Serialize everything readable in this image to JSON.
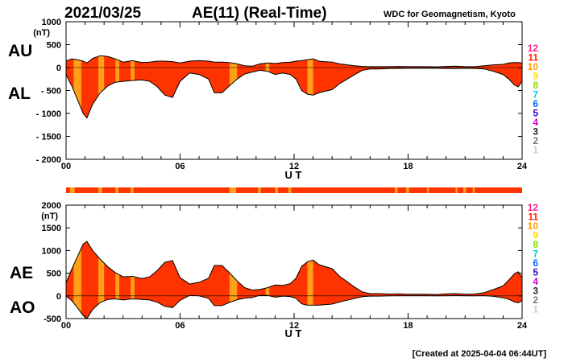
{
  "header": {
    "date": "2021/03/25",
    "title": "AE(11) (Real-Time)",
    "source": "WDC for Geomagnetism, Kyoto"
  },
  "footer": {
    "created": "[Created at 2025-04-04 06:44UT]"
  },
  "colors": {
    "fill_main": "#ff3300",
    "fill_alt": "#ffa018",
    "outline": "#000000"
  },
  "legend": [
    {
      "label": "12",
      "color": "#ff2288"
    },
    {
      "label": "11",
      "color": "#ff2200"
    },
    {
      "label": "10",
      "color": "#ff9900"
    },
    {
      "label": "9",
      "color": "#ffdd00"
    },
    {
      "label": "8",
      "color": "#88dd00"
    },
    {
      "label": "7",
      "color": "#00ccdd"
    },
    {
      "label": "6",
      "color": "#0066ff"
    },
    {
      "label": "5",
      "color": "#3300cc"
    },
    {
      "label": "4",
      "color": "#cc00cc"
    },
    {
      "label": "3",
      "color": "#222222"
    },
    {
      "label": "2",
      "color": "#777777"
    },
    {
      "label": "1",
      "color": "#cccccc"
    }
  ],
  "chart_data": [
    {
      "type": "area",
      "panel": "AU-AL",
      "labels": {
        "upper": "AU",
        "lower": "AL"
      },
      "ylabel": "(nT)",
      "xlabel": "U T",
      "ylim": [
        -2000,
        1000
      ],
      "yticks": [
        1000,
        500,
        0,
        -500,
        -1000,
        -1500,
        -2000
      ],
      "ytick_labels": [
        "1000",
        "500",
        "0",
        "- 500",
        "- 1000",
        "- 1500",
        "- 2000"
      ],
      "xlim": [
        0,
        24
      ],
      "xticks": [
        0,
        6,
        12,
        18,
        24
      ],
      "xtick_labels": [
        "00",
        "06",
        "12",
        "18",
        "24"
      ],
      "x_hours": [
        0,
        0.3,
        0.6,
        0.9,
        1.1,
        1.4,
        1.8,
        2.2,
        2.6,
        3.0,
        3.5,
        4.0,
        4.4,
        4.8,
        5.2,
        5.6,
        6.0,
        6.5,
        7.0,
        7.5,
        7.8,
        8.2,
        8.6,
        9.0,
        9.4,
        9.8,
        10.2,
        10.6,
        11.0,
        11.4,
        11.8,
        12.1,
        12.4,
        12.7,
        13.0,
        13.3,
        13.6,
        14.0,
        14.4,
        14.8,
        15.2,
        15.6,
        16.0,
        16.5,
        17.0,
        17.5,
        18.0,
        18.5,
        19.0,
        19.5,
        20.0,
        20.5,
        21.0,
        21.5,
        22.0,
        22.5,
        23.0,
        23.3,
        23.6,
        23.8,
        24.0
      ],
      "au_nT": [
        140,
        190,
        170,
        140,
        100,
        200,
        260,
        240,
        190,
        120,
        150,
        110,
        120,
        140,
        140,
        130,
        100,
        140,
        150,
        140,
        120,
        120,
        110,
        80,
        40,
        30,
        80,
        100,
        90,
        110,
        120,
        140,
        150,
        170,
        190,
        140,
        130,
        120,
        80,
        60,
        40,
        25,
        20,
        20,
        20,
        25,
        20,
        20,
        20,
        15,
        25,
        30,
        20,
        20,
        40,
        60,
        70,
        100,
        110,
        110,
        100
      ],
      "al_nT": [
        -150,
        -400,
        -700,
        -1000,
        -1100,
        -800,
        -550,
        -400,
        -320,
        -300,
        -280,
        -270,
        -300,
        -420,
        -600,
        -650,
        -300,
        -120,
        -150,
        -250,
        -550,
        -550,
        -400,
        -250,
        -140,
        -100,
        -60,
        -80,
        -150,
        -120,
        -150,
        -250,
        -500,
        -580,
        -600,
        -550,
        -520,
        -480,
        -350,
        -250,
        -150,
        -60,
        -30,
        -30,
        -20,
        -20,
        -15,
        -15,
        -15,
        -15,
        -20,
        -20,
        -15,
        -20,
        -30,
        -80,
        -150,
        -250,
        -380,
        -420,
        -300
      ],
      "highlight_hours": [
        [
          0.4,
          0.8
        ],
        [
          1.7,
          2.0
        ],
        [
          2.6,
          2.8
        ],
        [
          3.4,
          3.6
        ],
        [
          8.6,
          9.0
        ],
        [
          10.5,
          10.7
        ],
        [
          12.7,
          13.0
        ]
      ]
    },
    {
      "type": "area",
      "panel": "AE-AO",
      "labels": {
        "upper": "AE",
        "lower": "AO"
      },
      "ylabel": "(nT)",
      "xlabel": "U T",
      "ylim": [
        -500,
        2000
      ],
      "yticks": [
        2000,
        1500,
        1000,
        500,
        0,
        -500
      ],
      "ytick_labels": [
        "2000",
        "1500",
        "1000",
        "500",
        "0",
        "-500"
      ],
      "xlim": [
        0,
        24
      ],
      "xticks": [
        0,
        6,
        12,
        18,
        24
      ],
      "xtick_labels": [
        "00",
        "06",
        "12",
        "18",
        "24"
      ],
      "x_hours": [
        0,
        0.3,
        0.6,
        0.9,
        1.1,
        1.4,
        1.8,
        2.2,
        2.6,
        3.0,
        3.5,
        4.0,
        4.4,
        4.8,
        5.2,
        5.6,
        6.0,
        6.5,
        7.0,
        7.5,
        7.8,
        8.2,
        8.6,
        9.0,
        9.4,
        9.8,
        10.2,
        10.6,
        11.0,
        11.4,
        11.8,
        12.1,
        12.4,
        12.7,
        13.0,
        13.3,
        13.6,
        14.0,
        14.4,
        14.8,
        15.2,
        15.6,
        16.0,
        16.5,
        17.0,
        17.5,
        18.0,
        18.5,
        19.0,
        19.5,
        20.0,
        20.5,
        21.0,
        21.5,
        22.0,
        22.5,
        23.0,
        23.3,
        23.6,
        23.8,
        24.0
      ],
      "ae_nT": [
        290,
        590,
        870,
        1140,
        1200,
        1000,
        810,
        640,
        510,
        420,
        430,
        380,
        420,
        560,
        740,
        780,
        400,
        260,
        300,
        390,
        670,
        670,
        510,
        330,
        180,
        130,
        140,
        180,
        240,
        230,
        270,
        390,
        650,
        750,
        790,
        690,
        650,
        600,
        430,
        310,
        190,
        85,
        50,
        50,
        40,
        45,
        35,
        35,
        35,
        30,
        45,
        50,
        35,
        40,
        70,
        140,
        220,
        350,
        490,
        530,
        400
      ],
      "ao_nT": [
        -5,
        -105,
        -265,
        -430,
        -500,
        -300,
        -145,
        -80,
        -65,
        -90,
        -65,
        -80,
        -90,
        -140,
        -230,
        -260,
        -100,
        10,
        0,
        -55,
        -215,
        -215,
        -145,
        -85,
        -50,
        -35,
        10,
        10,
        -30,
        -5,
        -15,
        -55,
        -175,
        -205,
        -205,
        -205,
        -195,
        -180,
        -135,
        -95,
        -55,
        -18,
        -5,
        -5,
        0,
        3,
        3,
        3,
        3,
        0,
        3,
        5,
        3,
        0,
        5,
        -10,
        -40,
        -75,
        -135,
        -155,
        -100
      ],
      "highlight_hours": [
        [
          0.4,
          0.8
        ],
        [
          1.7,
          2.0
        ],
        [
          2.6,
          2.8
        ],
        [
          3.4,
          3.6
        ],
        [
          8.6,
          9.0
        ],
        [
          10.5,
          10.7
        ],
        [
          12.7,
          13.0
        ]
      ]
    }
  ],
  "station_bar": {
    "segments_hours": [
      [
        0.2,
        0.45
      ],
      [
        1.7,
        1.9
      ],
      [
        2.6,
        2.75
      ],
      [
        3.4,
        3.55
      ],
      [
        8.6,
        8.95
      ],
      [
        10.1,
        10.25
      ],
      [
        11.0,
        11.15
      ],
      [
        11.7,
        11.85
      ],
      [
        17.3,
        17.45
      ],
      [
        17.9,
        18.05
      ],
      [
        19.0,
        19.1
      ],
      [
        20.5,
        20.6
      ],
      [
        20.9,
        21.05
      ],
      [
        21.4,
        21.5
      ]
    ]
  }
}
